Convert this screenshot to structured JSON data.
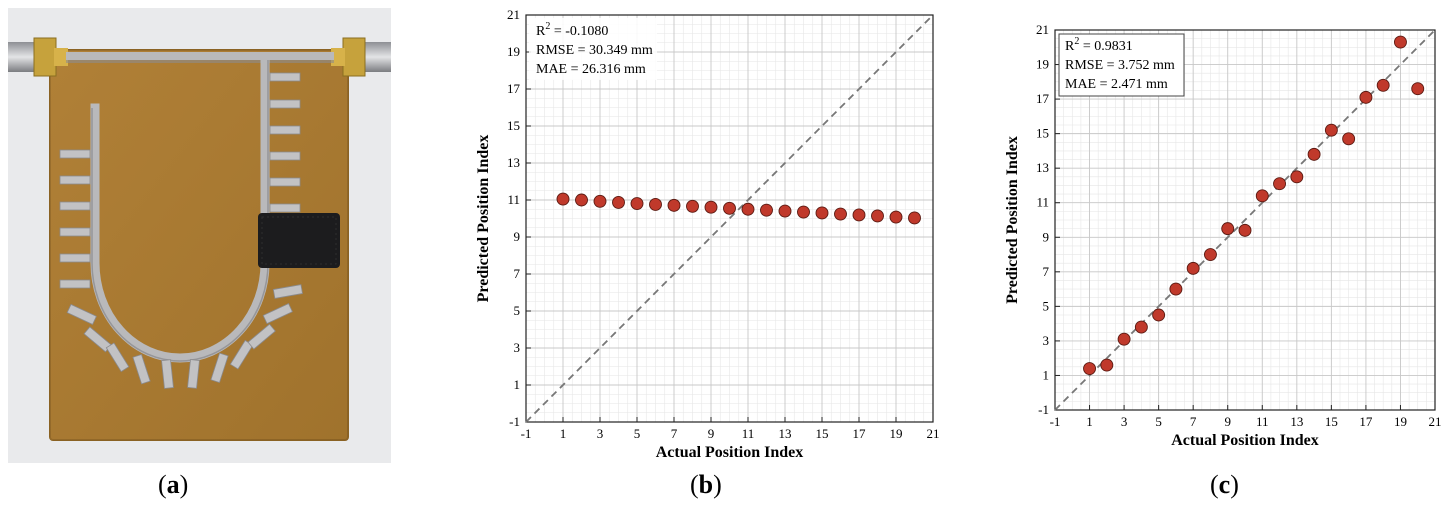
{
  "panels": {
    "a": {
      "label": "a"
    },
    "b": {
      "label": "b"
    },
    "c": {
      "label": "c"
    }
  },
  "colors": {
    "marker_fill": "#c0392b",
    "marker_stroke": "#5a1a12",
    "reference_line": "#777777",
    "grid_major": "#c8c8c8",
    "grid_minor": "#e6e6e6",
    "pcb": "#a8792f",
    "trace": "#b9b9bb"
  },
  "chart_data": [
    {
      "type": "scatter",
      "panel": "b",
      "xlabel": "Actual Position Index",
      "ylabel": "Predicted Position Index",
      "xlim": [
        -1,
        21
      ],
      "ylim": [
        -1,
        21
      ],
      "xticks": [
        -1,
        1,
        3,
        5,
        7,
        9,
        11,
        13,
        15,
        17,
        19,
        21
      ],
      "yticks": [
        -1,
        1,
        3,
        5,
        7,
        9,
        11,
        13,
        15,
        17,
        19,
        21
      ],
      "grid": true,
      "reference_line": "y = x (dashed)",
      "annotations": {
        "r2_prefix": "R",
        "r2_sup": "2",
        "r2_value": " = -0.1080",
        "rmse": "RMSE = 30.349 mm",
        "mae": "MAE = 26.316 mm"
      },
      "x": [
        1,
        2,
        3,
        4,
        5,
        6,
        7,
        8,
        9,
        10,
        11,
        12,
        13,
        14,
        15,
        16,
        17,
        18,
        19,
        20
      ],
      "y": [
        11.05,
        11.0,
        10.93,
        10.87,
        10.81,
        10.76,
        10.71,
        10.66,
        10.61,
        10.55,
        10.5,
        10.45,
        10.4,
        10.35,
        10.3,
        10.24,
        10.19,
        10.14,
        10.08,
        10.03
      ]
    },
    {
      "type": "scatter",
      "panel": "c",
      "xlabel": "Actual Position Index",
      "ylabel": "Predicted Position Index",
      "xlim": [
        -1,
        21
      ],
      "ylim": [
        -1,
        21
      ],
      "xticks": [
        -1,
        1,
        3,
        5,
        7,
        9,
        11,
        13,
        15,
        17,
        19,
        21
      ],
      "yticks": [
        -1,
        1,
        3,
        5,
        7,
        9,
        11,
        13,
        15,
        17,
        19,
        21
      ],
      "grid": true,
      "reference_line": "y = x (dashed)",
      "annotations": {
        "r2_prefix": "R",
        "r2_sup": "2",
        "r2_value": " = 0.9831",
        "rmse": "RMSE = 3.752 mm",
        "mae": "MAE = 2.471 mm"
      },
      "x": [
        1,
        2,
        3,
        4,
        5,
        6,
        7,
        8,
        9,
        10,
        11,
        12,
        13,
        14,
        15,
        16,
        17,
        18,
        19,
        20
      ],
      "y": [
        1.4,
        1.6,
        3.1,
        3.8,
        4.5,
        6.0,
        7.2,
        8.0,
        9.5,
        9.4,
        11.4,
        12.1,
        12.5,
        13.8,
        15.2,
        14.7,
        17.1,
        17.8,
        20.3,
        17.6
      ]
    }
  ]
}
